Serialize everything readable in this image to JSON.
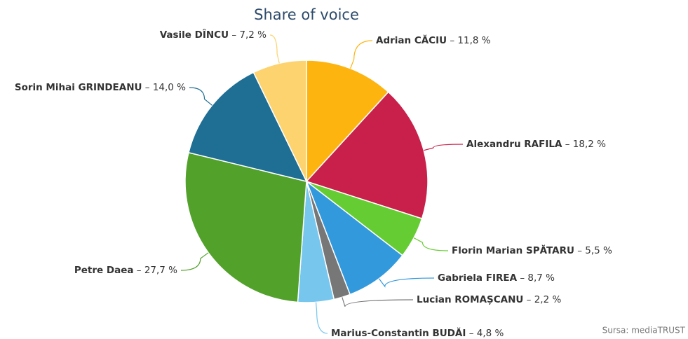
{
  "chart_data": {
    "type": "pie",
    "title": "Share of voice",
    "credit": "Sursa: mediaTRUST",
    "categories": [
      "Adrian CĂCIU",
      "Alexandru RAFILA",
      "Florin Marian SPĂTARU",
      "Gabriela FIREA",
      "Lucian ROMAȘCANU",
      "Marius-Constantin BUDĂI",
      "Petre Daea",
      "Sorin Mihai GRINDEANU",
      "Vasile DÎNCU"
    ],
    "values": [
      11.8,
      18.2,
      5.5,
      8.7,
      2.2,
      4.8,
      27.7,
      14.0,
      7.2
    ],
    "value_labels": [
      "– 11,8 %",
      "– 18,2 %",
      "– 5,5 %",
      "– 8,7 %",
      "– 2,2 %",
      "– 4,8 %",
      "– 27,7 %",
      "– 14,0 %",
      "– 7,2 %"
    ],
    "colors": [
      "#fdb40f",
      "#c8204b",
      "#66cc33",
      "#3399dd",
      "#777777",
      "#77c6ee",
      "#52a12b",
      "#1f6e94",
      "#fcd36e"
    ]
  }
}
